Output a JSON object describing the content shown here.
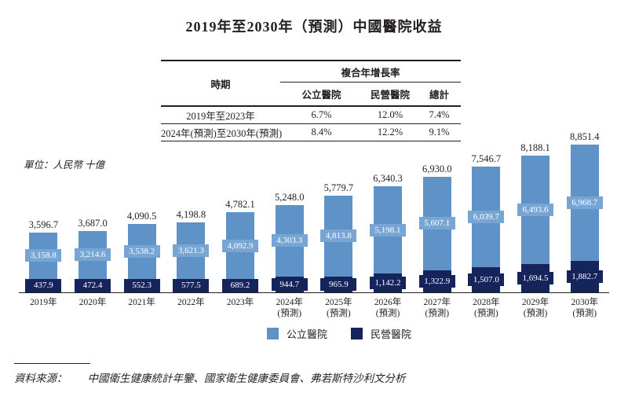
{
  "title": "2019年至2030年（預測）中國醫院收益",
  "unit_label": "單位：人民幣 十億",
  "table": {
    "period_header": "時期",
    "cagr_header": "複合年增長率",
    "sub_headers": [
      "公立醫院",
      "民營醫院",
      "總計"
    ],
    "rows": [
      [
        "2019年至2023年",
        "6.7%",
        "12.0%",
        "7.4%"
      ],
      [
        "2024年(預測)至2030年(預測)",
        "8.4%",
        "12.2%",
        "9.1%"
      ]
    ]
  },
  "legend": {
    "public_label": "公立醫院",
    "private_label": "民營醫院"
  },
  "source": {
    "label": "資料來源：",
    "text": "中國衛生健康統計年鑒、國家衛生健康委員會、弗若斯特沙利文分析"
  },
  "colors": {
    "public_bar": "#5F93C8",
    "public_value_badge": "#77A6D4",
    "private_bar": "#16245C",
    "axis_line": "#231f20",
    "text": "#231f20",
    "value_text": "#ffffff"
  },
  "chart_data": {
    "type": "bar",
    "stacked": true,
    "title": "2019年至2030年（預測）中國醫院收益",
    "ylabel": "人民幣 十億",
    "ylim": [
      0,
      8851.4
    ],
    "grid": false,
    "legend_position": "bottom",
    "categories": [
      "2019年",
      "2020年",
      "2021年",
      "2022年",
      "2023年",
      "2024年",
      "2025年",
      "2026年",
      "2027年",
      "2028年",
      "2029年",
      "2030年"
    ],
    "category_notes": [
      "",
      "",
      "",
      "",
      "",
      "(預測)",
      "(預測)",
      "(預測)",
      "(預測)",
      "(預測)",
      "(預測)",
      "(預測)"
    ],
    "series": [
      {
        "name": "公立醫院",
        "values": [
          3158.8,
          3214.6,
          3538.2,
          3621.3,
          4092.9,
          4303.3,
          4813.8,
          5198.1,
          5607.1,
          6039.7,
          6493.6,
          6968.7
        ]
      },
      {
        "name": "民營醫院",
        "values": [
          437.9,
          472.4,
          552.3,
          577.5,
          689.2,
          944.7,
          965.9,
          1142.2,
          1322.9,
          1507.0,
          1694.5,
          1882.7
        ]
      }
    ],
    "totals": [
      3596.7,
      3687.0,
      4090.5,
      4198.8,
      4782.1,
      5248.0,
      5779.7,
      6340.3,
      6930.0,
      7546.7,
      8188.1,
      8851.4
    ],
    "cagr_table": {
      "2019-2023": {
        "public": 6.7,
        "private": 12.0,
        "total": 7.4
      },
      "2024-2030": {
        "public": 8.4,
        "private": 12.2,
        "total": 9.1
      }
    }
  }
}
